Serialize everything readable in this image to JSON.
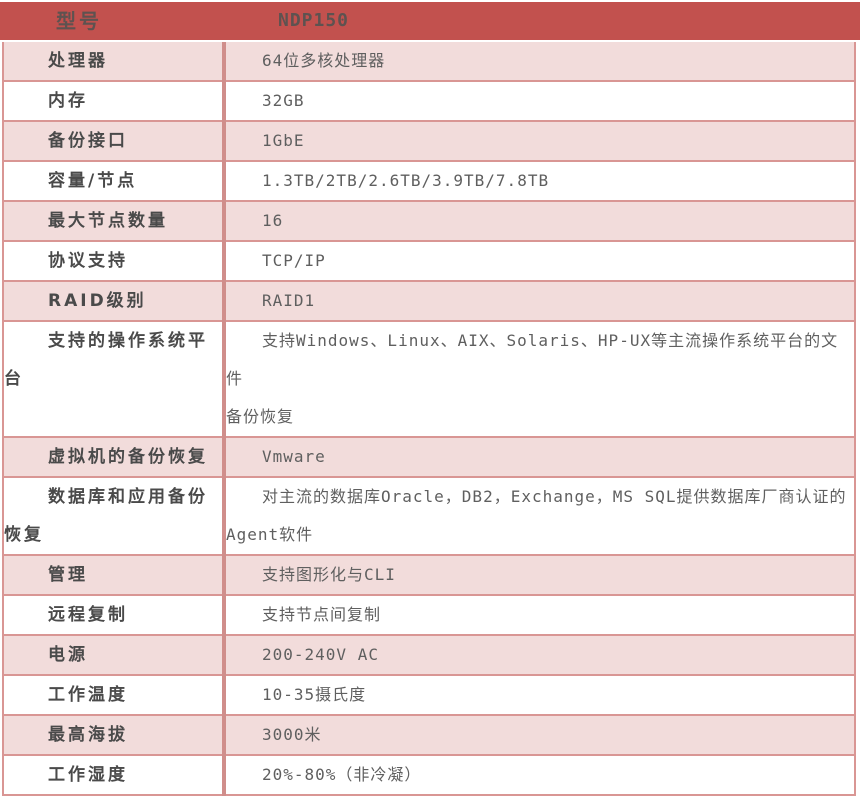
{
  "table": {
    "header": {
      "label": "型号",
      "value": "NDP150"
    },
    "rows": [
      {
        "label": "处理器",
        "value": "64位多核处理器"
      },
      {
        "label": "内存",
        "value": "32GB"
      },
      {
        "label": "备份接口",
        "value": "1GbE"
      },
      {
        "label": "容量/节点",
        "value": "1.3TB/2TB/2.6TB/3.9TB/7.8TB"
      },
      {
        "label": "最大节点数量",
        "value": "16"
      },
      {
        "label": "协议支持",
        "value": "TCP/IP"
      },
      {
        "label": "RAID级别",
        "value": "RAID1"
      },
      {
        "label": "支持的操作系统平\n台",
        "value": "支持Windows、Linux、AIX、Solaris、HP-UX等主流操作系统平台的文件\n备份恢复"
      },
      {
        "label": "虚拟机的备份恢复",
        "value": "Vmware"
      },
      {
        "label": "数据库和应用备份\n恢复",
        "value": "对主流的数据库Oracle，DB2，Exchange，MS SQL提供数据库厂商认证的\nAgent软件"
      },
      {
        "label": "管理",
        "value": "支持图形化与CLI"
      },
      {
        "label": "远程复制",
        "value": "支持节点间复制"
      },
      {
        "label": "电源",
        "value": "200-240V AC"
      },
      {
        "label": "工作温度",
        "value": "10-35摄氏度"
      },
      {
        "label": "最高海拔",
        "value": "3000米"
      },
      {
        "label": "工作湿度",
        "value": "20%-80%（非冷凝）"
      }
    ],
    "colors": {
      "header_bg": "#c2514e",
      "header_text": "#5e5250",
      "row_shade": "#f2dcdb",
      "border": "#d99694",
      "divider": "#d08e8b",
      "label_text": "#4a4a4a",
      "value_text": "#5f5f5f"
    }
  }
}
